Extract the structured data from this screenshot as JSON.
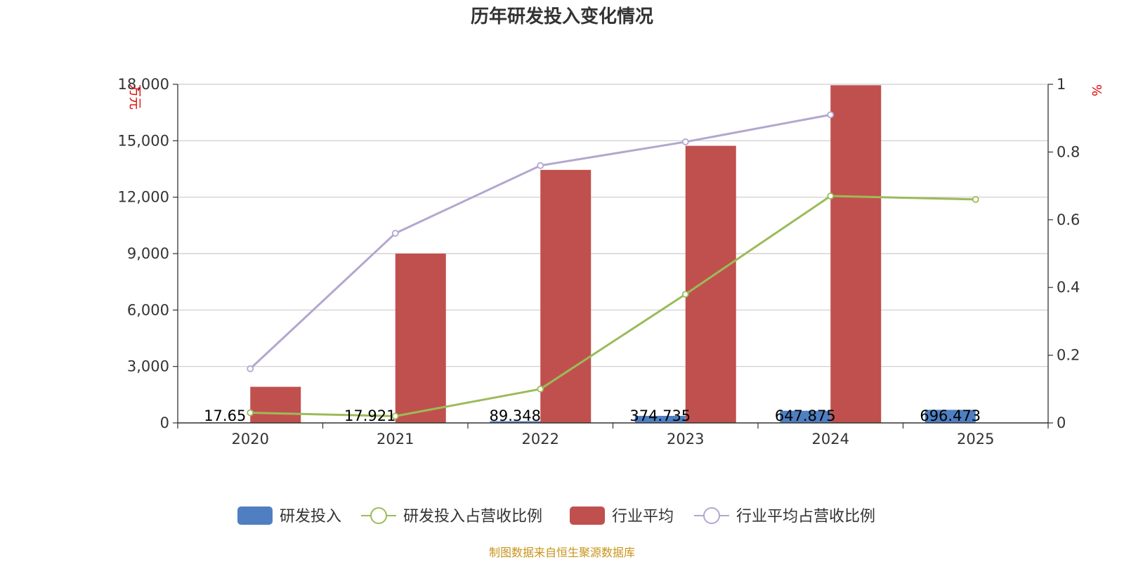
{
  "chart_data": {
    "type": "bar",
    "title": "历年研发投入变化情况",
    "categories": [
      "2020",
      "2021",
      "2022",
      "2023",
      "2024",
      "2025"
    ],
    "y_left": {
      "unit": "万元",
      "ylim": [
        0,
        18000
      ],
      "ticks": [
        "0",
        "3,000",
        "6,000",
        "9,000",
        "12,000",
        "15,000",
        "18,000"
      ],
      "tick_values": [
        0,
        3000,
        6000,
        9000,
        12000,
        15000,
        18000
      ]
    },
    "y_right": {
      "unit": "%",
      "ylim": [
        0,
        1
      ],
      "ticks": [
        "0",
        "0.2",
        "0.4",
        "0.6",
        "0.8",
        "1"
      ],
      "tick_values": [
        0,
        0.2,
        0.4,
        0.6,
        0.8,
        1
      ]
    },
    "grid": true,
    "legend_position": "bottom-center",
    "series": [
      {
        "name": "研发投入",
        "kind": "bar",
        "axis": "left",
        "color": "#4f7fc1",
        "values": [
          17.65,
          17.921,
          89.348,
          374.735,
          647.875,
          696.473
        ],
        "labels": [
          "17.65",
          "17.921",
          "89.348",
          "374.735",
          "647.875",
          "696.473"
        ]
      },
      {
        "name": "研发投入占营收比例",
        "kind": "line",
        "axis": "right",
        "color": "#9bbb59",
        "values": [
          0.03,
          0.02,
          0.1,
          0.38,
          0.67,
          0.66
        ]
      },
      {
        "name": "行业平均",
        "kind": "bar",
        "axis": "left",
        "color": "#c0504d",
        "values": [
          1920,
          9000,
          13450,
          14730,
          17950,
          null
        ]
      },
      {
        "name": "行业平均占营收比例",
        "kind": "line",
        "axis": "right",
        "color": "#b3a7cf",
        "values": [
          0.16,
          0.56,
          0.76,
          0.83,
          0.91,
          null
        ]
      }
    ]
  },
  "source": "制图数据来自恒生聚源数据库"
}
